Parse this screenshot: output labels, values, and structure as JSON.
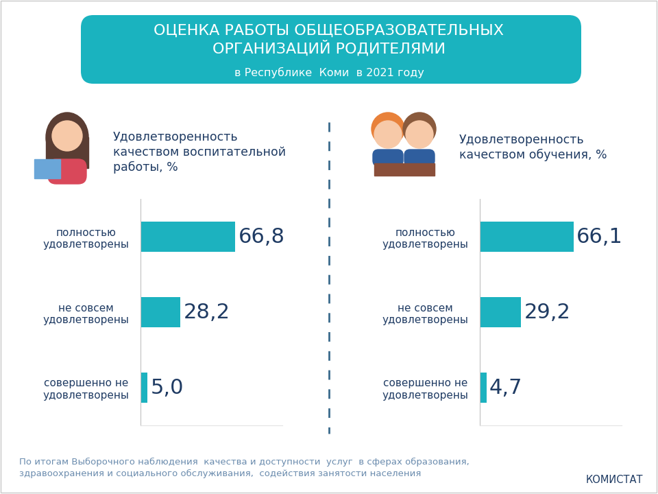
{
  "header": {
    "title": "ОЦЕНКА РАБОТЫ ОБЩЕОБРАЗОВАТЕЛЬНЫХ ОРГАНИЗАЦИЙ РОДИТЕЛЯМИ",
    "subtitle": "в Республике  Коми  в 2021 году"
  },
  "chart_data": [
    {
      "type": "bar",
      "orientation": "horizontal",
      "title": "Удовлетворенность качеством воспитательной работы, %",
      "categories": [
        "полностью удовлетворены",
        "не совсем удовлетворены",
        "совершенно не удовлетворены"
      ],
      "values": [
        66.8,
        28.2,
        5.0
      ],
      "value_labels": [
        "66,8",
        "28,2",
        "5,0"
      ],
      "color": "#1cb2bf",
      "data_labels": true,
      "tick_labels": "y",
      "xlim": [
        0,
        100
      ],
      "xticks": []
    },
    {
      "type": "bar",
      "orientation": "horizontal",
      "title": "Удовлетворенность качеством обучения, %",
      "categories": [
        "полностью удовлетворены",
        "не совсем удовлетворены",
        "совершенно не удовлетворены"
      ],
      "values": [
        66.1,
        29.2,
        4.7
      ],
      "value_labels": [
        "66,1",
        "29,2",
        "4,7"
      ],
      "color": "#1cb2bf",
      "data_labels": true,
      "tick_labels": "y",
      "xlim": [
        0,
        100
      ],
      "xticks": []
    }
  ],
  "footer": {
    "note": "По итогам Выборочного наблюдения  качества и доступности  услуг  в сферах образования, здравоохранения и социального обслуживания,  содействия занятости населения",
    "source": "КОМИСТАТ"
  }
}
